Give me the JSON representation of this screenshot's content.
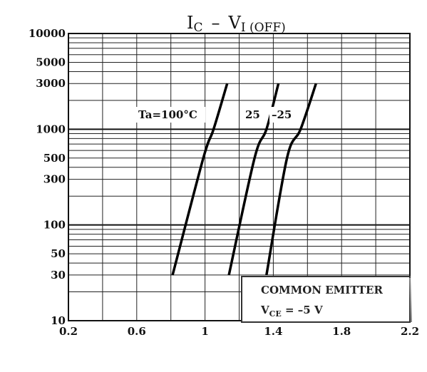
{
  "chart_data": {
    "type": "line",
    "title": {
      "main": "I",
      "main_sub": "C",
      "dash": "–",
      "second": "V",
      "second_sub": "I (OFF)"
    },
    "xlabel": "",
    "ylabel": "",
    "xlim": [
      0.2,
      2.2
    ],
    "ylim": [
      10,
      10000
    ],
    "y_scale": "log",
    "grid": true,
    "x_ticks": [
      0.2,
      0.6,
      1,
      1.4,
      1.8,
      2.2
    ],
    "x_tick_labels": [
      "0.2",
      "0.6",
      "1",
      "1.4",
      "1.8",
      "2.2"
    ],
    "y_ticks": [
      10,
      30,
      50,
      100,
      300,
      500,
      1000,
      3000,
      5000,
      10000
    ],
    "y_tick_labels": [
      "10",
      "30",
      "50",
      "100",
      "300",
      "500",
      "1000",
      "3000",
      "5000",
      "10000"
    ],
    "series": [
      {
        "name": "Ta=100°C",
        "points": [
          [
            0.81,
            30
          ],
          [
            0.99,
            500
          ],
          [
            1.05,
            1000
          ],
          [
            1.13,
            3000
          ]
        ]
      },
      {
        "name": "25",
        "points": [
          [
            1.14,
            30
          ],
          [
            1.29,
            500
          ],
          [
            1.36,
            1000
          ],
          [
            1.43,
            3000
          ]
        ]
      },
      {
        "name": "–25",
        "points": [
          [
            1.36,
            30
          ],
          [
            1.48,
            500
          ],
          [
            1.56,
            1000
          ],
          [
            1.65,
            3000
          ]
        ]
      }
    ],
    "annotations": {
      "ta_label": "Ta=100°C",
      "label_25": "25",
      "label_m25": "–25"
    },
    "legend_box": {
      "line1": "COMMON EMITTER",
      "line2_main": "V",
      "line2_sub": "CE",
      "line2_rest": " = –5 V"
    }
  }
}
